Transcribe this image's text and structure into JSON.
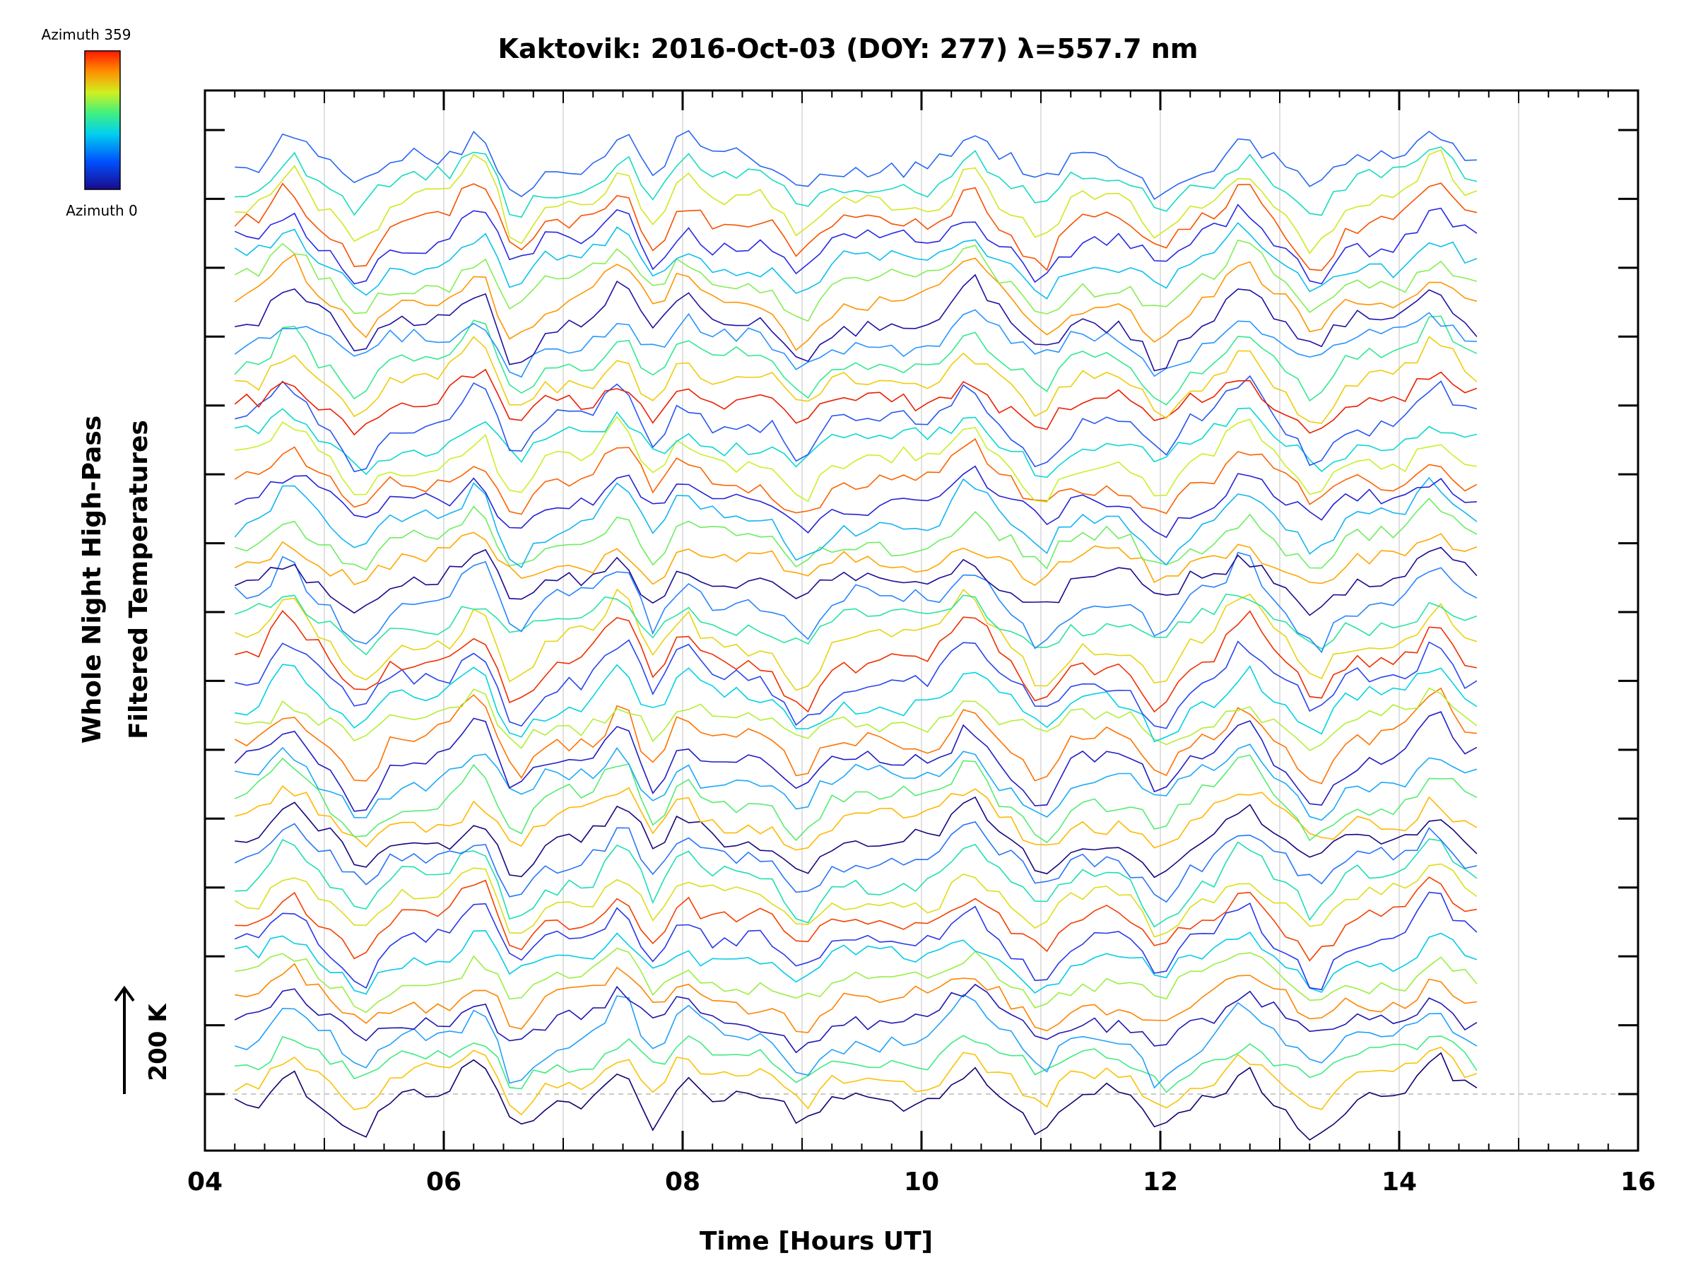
{
  "chart_data": {
    "type": "line",
    "title": "Kaktovik: 2016-Oct-03 (DOY: 277) λ=557.7 nm",
    "xlabel": "Time [Hours UT]",
    "ylabel_line1": "Whole Night High-Pass",
    "ylabel_line2": "Filtered Temperatures",
    "xlim": [
      4,
      16
    ],
    "x_ticks": [
      "04",
      "06",
      "08",
      "10",
      "12",
      "14",
      "16"
    ],
    "y_scale_label": "200 K",
    "y_ticks_count": 15,
    "grid": "vertical, every hour",
    "colorbar": {
      "top_label": "Azimuth  359",
      "bottom_label": "Azimuth  0",
      "colormap": "rainbow",
      "range": [
        0,
        359
      ]
    },
    "series_description": "~48 stacked azimuth traces (rainbow coloured by azimuth), x from 4.25 to 14.7 h UT",
    "data_x_start": 4.25,
    "data_x_end": 14.7,
    "n_traces": 48,
    "dip_hours": [
      5.3,
      6.6,
      7.8,
      9.0,
      11.0,
      12.0,
      13.3
    ],
    "peak_hours": [
      4.7,
      6.3,
      7.5,
      7.95,
      10.4,
      12.7,
      14.3
    ]
  }
}
